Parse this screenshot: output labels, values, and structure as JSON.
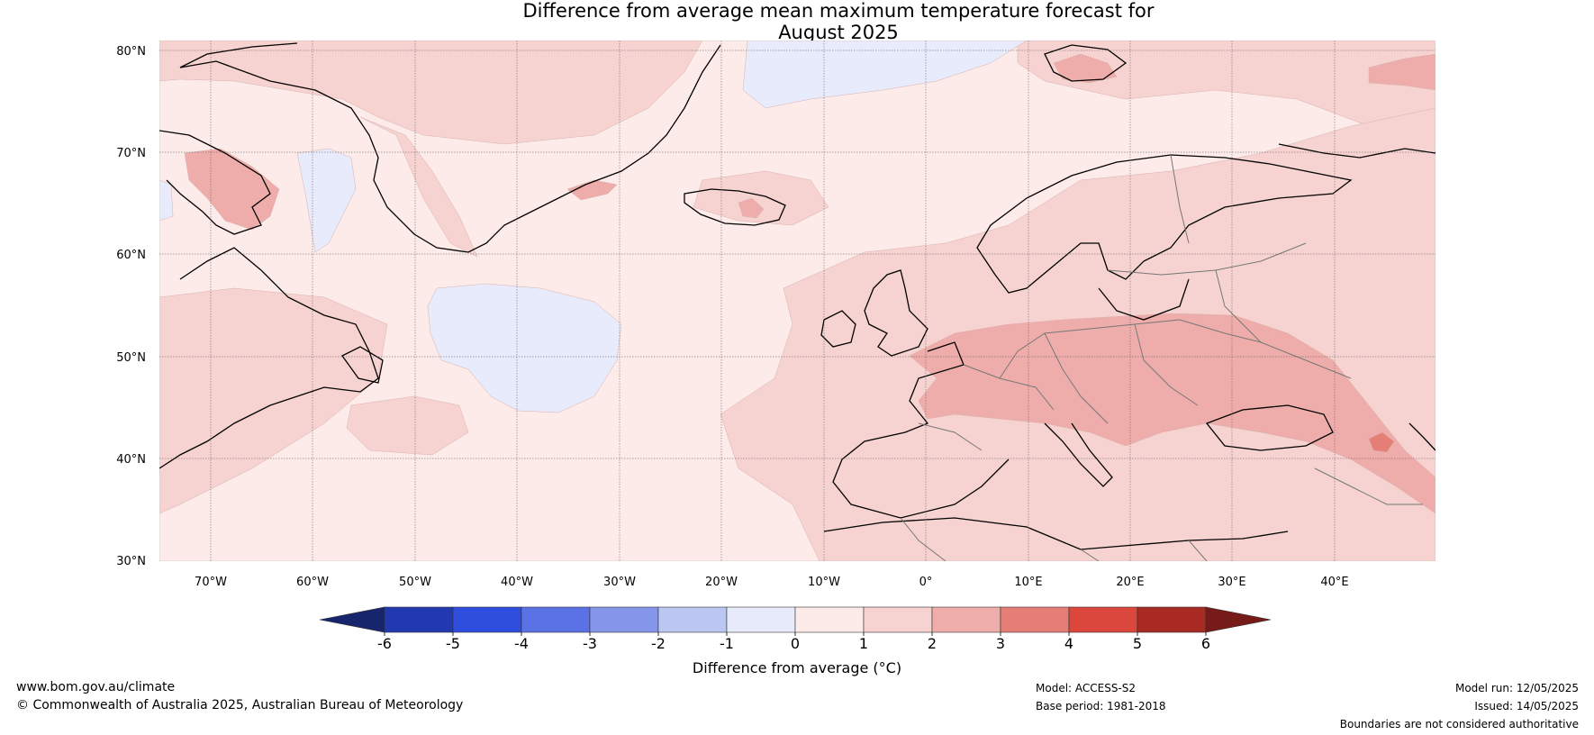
{
  "title_line1": "Difference from average mean maximum temperature forecast for",
  "title_line2": "August 2025",
  "lat_labels": [
    "80°N",
    "70°N",
    "60°N",
    "50°N",
    "40°N",
    "30°N"
  ],
  "lon_labels": [
    "70°W",
    "60°W",
    "50°W",
    "40°W",
    "30°W",
    "20°W",
    "10°W",
    "0°",
    "10°E",
    "20°E",
    "30°E",
    "40°E"
  ],
  "colorbar": {
    "ticks": [
      "-6",
      "-5",
      "-4",
      "-3",
      "-2",
      "-1",
      "0",
      "1",
      "2",
      "3",
      "4",
      "5",
      "6"
    ],
    "colors": [
      "#17256d",
      "#2339b2",
      "#2f4ede",
      "#5b72e6",
      "#8596ea",
      "#bcc6f3",
      "#e8ebfb",
      "#fcebe9",
      "#f6d3d1",
      "#eeadaa",
      "#e57e77",
      "#db473c",
      "#a82a22",
      "#761b18"
    ],
    "label": "Difference from average (°C)"
  },
  "map_colors": {
    "ocean_base": "#fcebe9",
    "light_warm": "#f6d3d1",
    "warm": "#eeadaa",
    "hot": "#e57e77",
    "cool": "#e8ebfb"
  },
  "footer": {
    "url": "www.bom.gov.au/climate",
    "copyright": "© Commonwealth of Australia 2025, Australian Bureau of Meteorology",
    "model": "Model: ACCESS-S2",
    "base_period": "Base period: 1981-2018",
    "model_run": "Model run: 12/05/2025",
    "issued": "Issued: 14/05/2025",
    "disclaimer": "Boundaries are not considered authoritative"
  }
}
